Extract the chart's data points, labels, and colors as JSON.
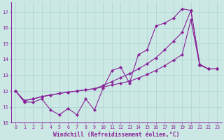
{
  "xlabel": "Windchill (Refroidissement éolien,°C)",
  "background_color": "#cce8e4",
  "grid_color": "#aad4d0",
  "line_color": "#882299",
  "xlim": [
    -0.5,
    23.5
  ],
  "ylim": [
    10,
    17.6
  ],
  "yticks": [
    10,
    11,
    12,
    13,
    14,
    15,
    16,
    17
  ],
  "xticks": [
    0,
    1,
    2,
    3,
    4,
    5,
    6,
    7,
    8,
    9,
    10,
    11,
    12,
    13,
    14,
    15,
    16,
    17,
    18,
    19,
    20,
    21,
    22,
    23
  ],
  "line1_x": [
    0,
    1,
    2,
    3,
    4,
    5,
    6,
    7,
    8,
    9,
    10,
    11,
    12,
    13,
    14,
    15,
    16,
    17,
    18,
    19,
    20,
    21,
    22,
    23
  ],
  "line1_y": [
    12.0,
    11.3,
    11.3,
    11.5,
    10.8,
    10.5,
    10.9,
    10.5,
    11.5,
    10.8,
    12.2,
    13.3,
    13.5,
    12.5,
    14.3,
    14.6,
    16.1,
    16.3,
    16.6,
    17.2,
    17.1,
    13.7,
    13.4,
    13.4
  ],
  "line2_x": [
    0,
    1,
    2,
    3,
    4,
    5,
    6,
    7,
    8,
    9,
    10,
    11,
    12,
    13,
    14,
    15,
    16,
    17,
    18,
    19,
    20,
    21,
    22,
    23
  ],
  "line2_y": [
    12.0,
    11.4,
    11.5,
    11.65,
    11.75,
    11.85,
    11.93,
    12.0,
    12.08,
    12.15,
    12.25,
    12.38,
    12.5,
    12.62,
    12.82,
    13.05,
    13.3,
    13.6,
    13.95,
    14.3,
    16.5,
    13.65,
    13.4,
    13.4
  ],
  "line3_x": [
    0,
    1,
    2,
    3,
    4,
    5,
    6,
    7,
    8,
    9,
    10,
    11,
    12,
    13,
    14,
    15,
    16,
    17,
    18,
    19,
    20,
    21,
    22,
    23
  ],
  "line3_y": [
    12.0,
    11.4,
    11.5,
    11.65,
    11.75,
    11.85,
    11.93,
    12.0,
    12.08,
    12.15,
    12.35,
    12.6,
    12.85,
    13.1,
    13.4,
    13.72,
    14.1,
    14.6,
    15.15,
    15.7,
    17.1,
    13.65,
    13.4,
    13.4
  ],
  "marker": "D",
  "markersize": 2.2,
  "linewidth": 0.8,
  "tick_fontsize": 4.8,
  "xlabel_fontsize": 5.8,
  "label_color": "#882299",
  "spine_color": "#882299"
}
